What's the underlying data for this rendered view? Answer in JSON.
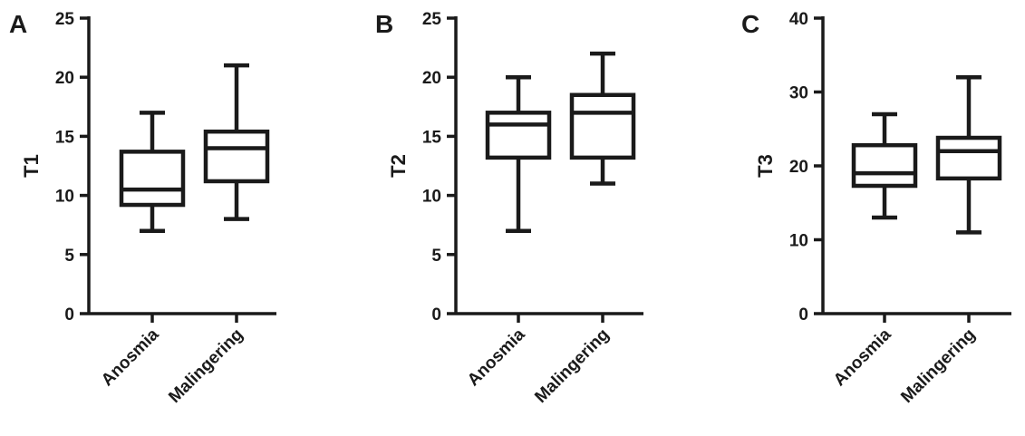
{
  "chart_data": [
    {
      "type": "box",
      "panel_label": "A",
      "ylabel": "T1",
      "ylim": [
        0,
        25
      ],
      "yticks": [
        0,
        5,
        10,
        15,
        20,
        25
      ],
      "categories": [
        "Anosmia",
        "Malingering"
      ],
      "boxes": [
        {
          "min": 7,
          "q1": 9.2,
          "median": 10.5,
          "q3": 13.7,
          "max": 17
        },
        {
          "min": 8,
          "q1": 11.2,
          "median": 14,
          "q3": 15.4,
          "max": 21
        }
      ]
    },
    {
      "type": "box",
      "panel_label": "B",
      "ylabel": "T2",
      "ylim": [
        0,
        25
      ],
      "yticks": [
        0,
        5,
        10,
        15,
        20,
        25
      ],
      "categories": [
        "Anosmia",
        "Malingering"
      ],
      "boxes": [
        {
          "min": 7,
          "q1": 13.2,
          "median": 16,
          "q3": 17,
          "max": 20
        },
        {
          "min": 11,
          "q1": 13.2,
          "median": 17,
          "q3": 18.5,
          "max": 22
        }
      ]
    },
    {
      "type": "box",
      "panel_label": "C",
      "ylabel": "T3",
      "ylim": [
        0,
        40
      ],
      "yticks": [
        0,
        10,
        20,
        30,
        40
      ],
      "categories": [
        "Anosmia",
        "Malingering"
      ],
      "boxes": [
        {
          "min": 13,
          "q1": 17.3,
          "median": 19,
          "q3": 22.8,
          "max": 27
        },
        {
          "min": 11,
          "q1": 18.3,
          "median": 22,
          "q3": 23.8,
          "max": 32
        }
      ]
    }
  ]
}
